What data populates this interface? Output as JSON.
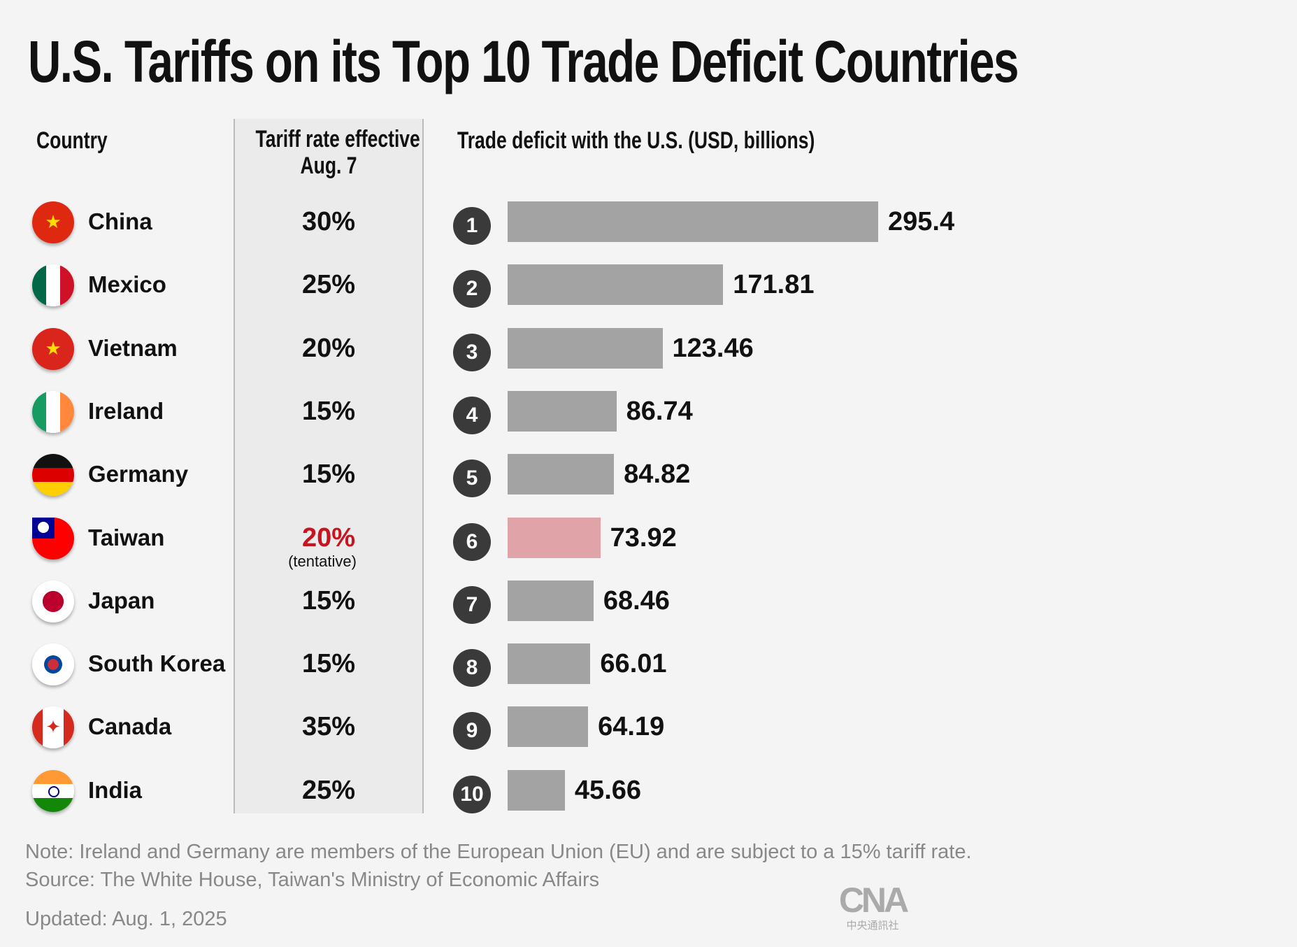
{
  "title": "U.S. Tariffs on its Top 10 Trade Deficit Countries",
  "headers": {
    "country": "Country",
    "tariff_line1": "Tariff rate effective",
    "tariff_line2": "Aug. 7",
    "deficit": "Trade deficit with the U.S. (USD, billions)"
  },
  "chart_data": {
    "type": "bar",
    "title": "U.S. Tariffs on its Top 10 Trade Deficit Countries",
    "ylabel": "Trade deficit with the U.S. (USD, billions)",
    "categories": [
      "China",
      "Mexico",
      "Vietnam",
      "Ireland",
      "Germany",
      "Taiwan",
      "Japan",
      "South Korea",
      "Canada",
      "India"
    ],
    "values": [
      295.4,
      171.81,
      123.46,
      86.74,
      84.82,
      73.92,
      68.46,
      66.01,
      64.19,
      45.66
    ],
    "value_labels": [
      "295.4",
      "171.81",
      "123.46",
      "86.74",
      "84.82",
      "73.92",
      "68.46",
      "66.01",
      "64.19",
      "45.66"
    ],
    "ranks": [
      "1",
      "2",
      "3",
      "4",
      "5",
      "6",
      "7",
      "8",
      "9",
      "10"
    ],
    "tariffs": [
      "30%",
      "25%",
      "20%",
      "15%",
      "15%",
      "20%",
      "15%",
      "15%",
      "35%",
      "25%"
    ],
    "tariff_notes": [
      "",
      "",
      "",
      "",
      "",
      "(tentative)",
      "",
      "",
      "",
      ""
    ],
    "highlight_index": 5,
    "xlim": [
      0,
      295.4
    ],
    "colors": {
      "bar": "#a3a3a3",
      "highlight": "#dfa3a8",
      "highlight_text": "#c8141e"
    }
  },
  "footer": {
    "note": "Note: Ireland and Germany are members of the European Union (EU) and are subject to a 15% tariff rate.",
    "source": "Source: The White House, Taiwan's Ministry of Economic Affairs",
    "updated": "Updated: Aug. 1, 2025",
    "logo_text": "CNA",
    "logo_sub": "中央通訊社"
  }
}
